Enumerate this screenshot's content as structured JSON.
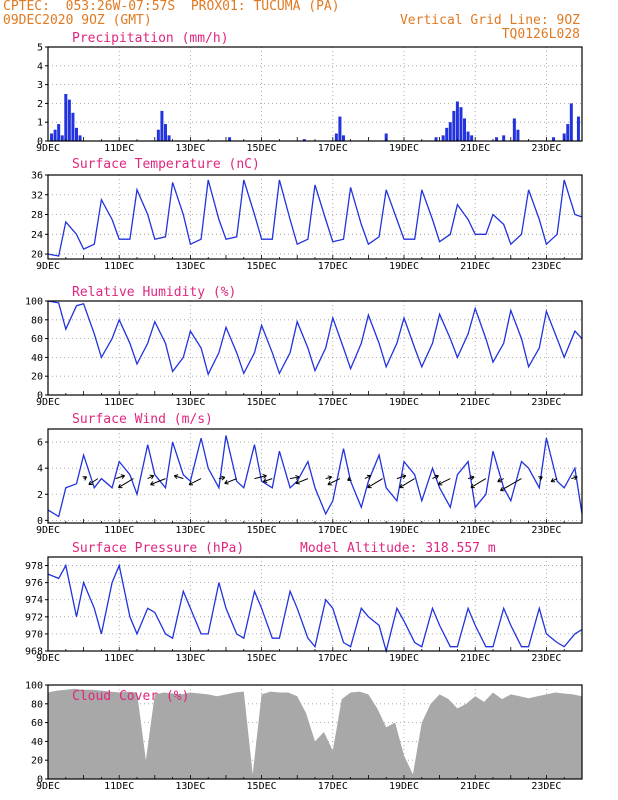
{
  "header": {
    "line1_left": "CPTEC:  053:26W-07:57S  PROX01: TUCUMA (PA)",
    "line2_left": "09DEC2020 9OZ (GMT)",
    "line2_right": "Vertical Grid Line: 9OZ",
    "line3_right": "TQ0126L028"
  },
  "colors": {
    "header_text": "#e07a22",
    "panel_title": "#e0267f",
    "line": "#2233dd",
    "bars": "#2233dd",
    "cloud": "#a8a8a8",
    "grid": "#999999"
  },
  "x_ticks": [
    "9DEC",
    "11DEC",
    "13DEC",
    "15DEC",
    "17DEC",
    "19DEC",
    "21DEC",
    "23DEC"
  ],
  "chart_data": [
    {
      "type": "bar",
      "title": "Precipitation (mm/h)",
      "x_days_range": [
        9,
        24
      ],
      "ylim": [
        0,
        5
      ],
      "y_ticks": [
        0,
        1,
        2,
        3,
        4,
        5
      ],
      "x": [
        9.1,
        9.2,
        9.3,
        9.4,
        9.5,
        9.6,
        9.7,
        9.8,
        9.9,
        12.1,
        12.2,
        12.3,
        12.4,
        14.1,
        16.2,
        17.1,
        17.2,
        17.3,
        18.5,
        19.9,
        20.1,
        20.2,
        20.3,
        20.4,
        20.5,
        20.6,
        20.7,
        20.8,
        20.9,
        21.6,
        21.8,
        22.1,
        22.2,
        23.2,
        23.5,
        23.6,
        23.7,
        23.9
      ],
      "values": [
        0.4,
        0.6,
        0.9,
        0.3,
        2.5,
        2.2,
        1.5,
        0.7,
        0.3,
        0.6,
        1.6,
        0.9,
        0.3,
        0.2,
        0.1,
        0.4,
        1.3,
        0.3,
        0.4,
        0.2,
        0.3,
        0.7,
        1.0,
        1.6,
        2.1,
        1.8,
        1.2,
        0.5,
        0.3,
        0.2,
        0.3,
        1.2,
        0.6,
        0.2,
        0.4,
        0.9,
        2.0,
        1.3
      ]
    },
    {
      "type": "line",
      "title": "Surface Temperature (nC)",
      "x_days_range": [
        9,
        24
      ],
      "ylim": [
        19,
        36
      ],
      "y_ticks": [
        20,
        24,
        28,
        32,
        36
      ],
      "x": [
        9.0,
        9.3,
        9.5,
        9.8,
        10.0,
        10.3,
        10.5,
        10.8,
        11.0,
        11.3,
        11.5,
        11.8,
        12.0,
        12.3,
        12.5,
        12.8,
        13.0,
        13.3,
        13.5,
        13.8,
        14.0,
        14.3,
        14.5,
        14.8,
        15.0,
        15.3,
        15.5,
        15.8,
        16.0,
        16.3,
        16.5,
        16.8,
        17.0,
        17.3,
        17.5,
        17.8,
        18.0,
        18.3,
        18.5,
        18.8,
        19.0,
        19.3,
        19.5,
        19.8,
        20.0,
        20.3,
        20.5,
        20.8,
        21.0,
        21.3,
        21.5,
        21.8,
        22.0,
        22.3,
        22.5,
        22.8,
        23.0,
        23.3,
        23.5,
        23.8,
        24.0
      ],
      "values": [
        20,
        19.6,
        26.5,
        24,
        21,
        22,
        31,
        27,
        23,
        23,
        33,
        28,
        23,
        23.5,
        34.5,
        28,
        22,
        23,
        35,
        27,
        23,
        23.5,
        35,
        28,
        23,
        23,
        35,
        27,
        22,
        23,
        34,
        27,
        22.5,
        23,
        33.5,
        26,
        22,
        23.5,
        33,
        27,
        23,
        23,
        33,
        27,
        22.5,
        24,
        30,
        27,
        24,
        24,
        28,
        26,
        22,
        24,
        33,
        27,
        22,
        24,
        35,
        28,
        27.5
      ]
    },
    {
      "type": "line",
      "title": "Relative Humidity (%)",
      "x_days_range": [
        9,
        24
      ],
      "ylim": [
        0,
        100
      ],
      "y_ticks": [
        0,
        20,
        40,
        60,
        80,
        100
      ],
      "x": [
        9.0,
        9.3,
        9.5,
        9.8,
        10.0,
        10.3,
        10.5,
        10.8,
        11.0,
        11.3,
        11.5,
        11.8,
        12.0,
        12.3,
        12.5,
        12.8,
        13.0,
        13.3,
        13.5,
        13.8,
        14.0,
        14.3,
        14.5,
        14.8,
        15.0,
        15.3,
        15.5,
        15.8,
        16.0,
        16.3,
        16.5,
        16.8,
        17.0,
        17.3,
        17.5,
        17.8,
        18.0,
        18.3,
        18.5,
        18.8,
        19.0,
        19.3,
        19.5,
        19.8,
        20.0,
        20.3,
        20.5,
        20.8,
        21.0,
        21.3,
        21.5,
        21.8,
        22.0,
        22.3,
        22.5,
        22.8,
        23.0,
        23.3,
        23.5,
        23.8,
        24.0
      ],
      "values": [
        100,
        98,
        70,
        95,
        97,
        65,
        40,
        60,
        80,
        55,
        33,
        55,
        78,
        55,
        25,
        40,
        68,
        50,
        22,
        45,
        72,
        45,
        23,
        45,
        74,
        45,
        23,
        45,
        78,
        50,
        26,
        50,
        82,
        50,
        28,
        55,
        85,
        55,
        30,
        55,
        82,
        50,
        30,
        55,
        86,
        60,
        40,
        65,
        92,
        60,
        35,
        55,
        90,
        60,
        30,
        50,
        89,
        60,
        40,
        68,
        60
      ]
    },
    {
      "type": "line",
      "title": "Surface Wind (m/s)",
      "x_days_range": [
        9,
        24
      ],
      "ylim": [
        -0.2,
        7
      ],
      "y_ticks": [
        0,
        2,
        4,
        6
      ],
      "x": [
        9.0,
        9.3,
        9.5,
        9.8,
        10.0,
        10.3,
        10.5,
        10.8,
        11.0,
        11.3,
        11.5,
        11.8,
        12.0,
        12.3,
        12.5,
        12.8,
        13.0,
        13.3,
        13.5,
        13.8,
        14.0,
        14.3,
        14.5,
        14.8,
        15.0,
        15.3,
        15.5,
        15.8,
        16.0,
        16.3,
        16.5,
        16.8,
        17.0,
        17.3,
        17.5,
        17.8,
        18.0,
        18.3,
        18.5,
        18.8,
        19.0,
        19.3,
        19.5,
        19.8,
        20.0,
        20.3,
        20.5,
        20.8,
        21.0,
        21.3,
        21.5,
        21.8,
        22.0,
        22.3,
        22.5,
        22.8,
        23.0,
        23.3,
        23.5,
        23.8,
        24.0
      ],
      "values": [
        0.8,
        0.3,
        2.5,
        2.8,
        5.0,
        2.5,
        3.2,
        2.5,
        4.5,
        3.5,
        2.0,
        5.8,
        3.5,
        2.5,
        6.0,
        3.5,
        3.0,
        6.3,
        4.0,
        2.5,
        6.5,
        3.0,
        2.5,
        5.8,
        3.0,
        2.5,
        5.3,
        2.5,
        3.0,
        4.5,
        2.5,
        0.5,
        1.5,
        5.5,
        3.0,
        1.0,
        3.0,
        5.0,
        2.5,
        1.5,
        4.5,
        3.5,
        1.5,
        4.0,
        2.5,
        1.0,
        3.5,
        4.5,
        1.0,
        2.0,
        5.3,
        2.5,
        1.5,
        4.5,
        4.0,
        2.5,
        6.3,
        3.0,
        2.5,
        4.0,
        0.5
      ],
      "vectors_x": [
        10.0,
        10.4,
        10.9,
        11.4,
        11.8,
        12.3,
        12.8,
        13.3,
        13.8,
        14.3,
        14.8,
        15.3,
        15.8,
        16.3,
        16.8,
        17.2,
        17.5,
        17.9,
        18.4,
        18.8,
        19.3,
        19.8,
        20.3,
        20.8,
        21.3,
        21.8,
        22.3,
        22.8,
        23.3,
        23.7
      ],
      "vectors_u": [
        0.5,
        -1.5,
        1.5,
        -2.5,
        1.0,
        -2.5,
        -1.5,
        -2.0,
        1.0,
        -2.0,
        2.0,
        -1.5,
        1.5,
        -2.0,
        1.0,
        -2.0,
        -0.5,
        1.0,
        -2.5,
        1.5,
        -2.5,
        1.0,
        -2.0,
        1.0,
        -2.5,
        -1.0,
        -3.5,
        0.5,
        -1.0,
        1.0
      ],
      "vectors_v": [
        0.3,
        -1.0,
        0.5,
        -1.5,
        0.5,
        -1.0,
        0.5,
        -1.0,
        0.2,
        -0.8,
        0.5,
        -0.5,
        0.3,
        -0.8,
        0.3,
        -1.0,
        -0.3,
        0.5,
        -1.5,
        0.5,
        -1.5,
        0.5,
        -1.0,
        0.3,
        -1.5,
        -0.5,
        -2.0,
        0.3,
        -0.5,
        0.3
      ]
    },
    {
      "type": "line",
      "title": "Surface Pressure (hPa)",
      "annotation": "Model Altitude: 318.557 m",
      "x_days_range": [
        9,
        24
      ],
      "ylim": [
        968,
        979
      ],
      "y_ticks": [
        968,
        970,
        972,
        974,
        976,
        978
      ],
      "x": [
        9.0,
        9.3,
        9.5,
        9.8,
        10.0,
        10.3,
        10.5,
        10.8,
        11.0,
        11.3,
        11.5,
        11.8,
        12.0,
        12.3,
        12.5,
        12.8,
        13.0,
        13.3,
        13.5,
        13.8,
        14.0,
        14.3,
        14.5,
        14.8,
        15.0,
        15.3,
        15.5,
        15.8,
        16.0,
        16.3,
        16.5,
        16.8,
        17.0,
        17.3,
        17.5,
        17.8,
        18.0,
        18.3,
        18.5,
        18.8,
        19.0,
        19.3,
        19.5,
        19.8,
        20.0,
        20.3,
        20.5,
        20.8,
        21.0,
        21.3,
        21.5,
        21.8,
        22.0,
        22.3,
        22.5,
        22.8,
        23.0,
        23.3,
        23.5,
        23.8,
        24.0
      ],
      "values": [
        977,
        976.5,
        978,
        972,
        976,
        973,
        970,
        976,
        978,
        972,
        970,
        973,
        972.5,
        970,
        969.5,
        975,
        973,
        970,
        970,
        976,
        973,
        970,
        969.5,
        975,
        973,
        969.5,
        969.5,
        975,
        973,
        969.5,
        968.5,
        974,
        973,
        969,
        968.5,
        973,
        972,
        971,
        968,
        973,
        971.5,
        969,
        968.5,
        973,
        971,
        968.5,
        968.5,
        973,
        971,
        968.5,
        968.5,
        973,
        971,
        968.5,
        968.5,
        973,
        970,
        969,
        968.5,
        970,
        970.5
      ]
    },
    {
      "type": "area",
      "title": "Cloud Cover (%)",
      "x_days_range": [
        9,
        24
      ],
      "ylim": [
        0,
        100
      ],
      "y_ticks": [
        0,
        20,
        40,
        60,
        80,
        100
      ],
      "x": [
        9.0,
        9.25,
        9.5,
        9.75,
        10.0,
        10.25,
        10.5,
        10.75,
        11.0,
        11.25,
        11.5,
        11.75,
        12.0,
        12.25,
        12.5,
        12.75,
        13.0,
        13.25,
        13.5,
        13.75,
        14.0,
        14.25,
        14.5,
        14.75,
        15.0,
        15.25,
        15.5,
        15.75,
        16.0,
        16.25,
        16.5,
        16.75,
        17.0,
        17.25,
        17.5,
        17.75,
        18.0,
        18.25,
        18.5,
        18.75,
        19.0,
        19.25,
        19.5,
        19.75,
        20.0,
        20.25,
        20.5,
        20.75,
        21.0,
        21.25,
        21.5,
        21.75,
        22.0,
        22.25,
        22.5,
        22.75,
        23.0,
        23.25,
        23.5,
        23.75,
        24.0
      ],
      "values": [
        92,
        94,
        95,
        96,
        95,
        95,
        94,
        93,
        92,
        93,
        92,
        20,
        90,
        92,
        91,
        90,
        92,
        91,
        90,
        88,
        90,
        92,
        93,
        5,
        90,
        93,
        92,
        92,
        88,
        70,
        40,
        50,
        30,
        85,
        92,
        93,
        90,
        75,
        55,
        60,
        25,
        5,
        60,
        80,
        90,
        85,
        75,
        80,
        88,
        82,
        92,
        85,
        90,
        88,
        86,
        88,
        90,
        92,
        91,
        90,
        88
      ]
    }
  ]
}
